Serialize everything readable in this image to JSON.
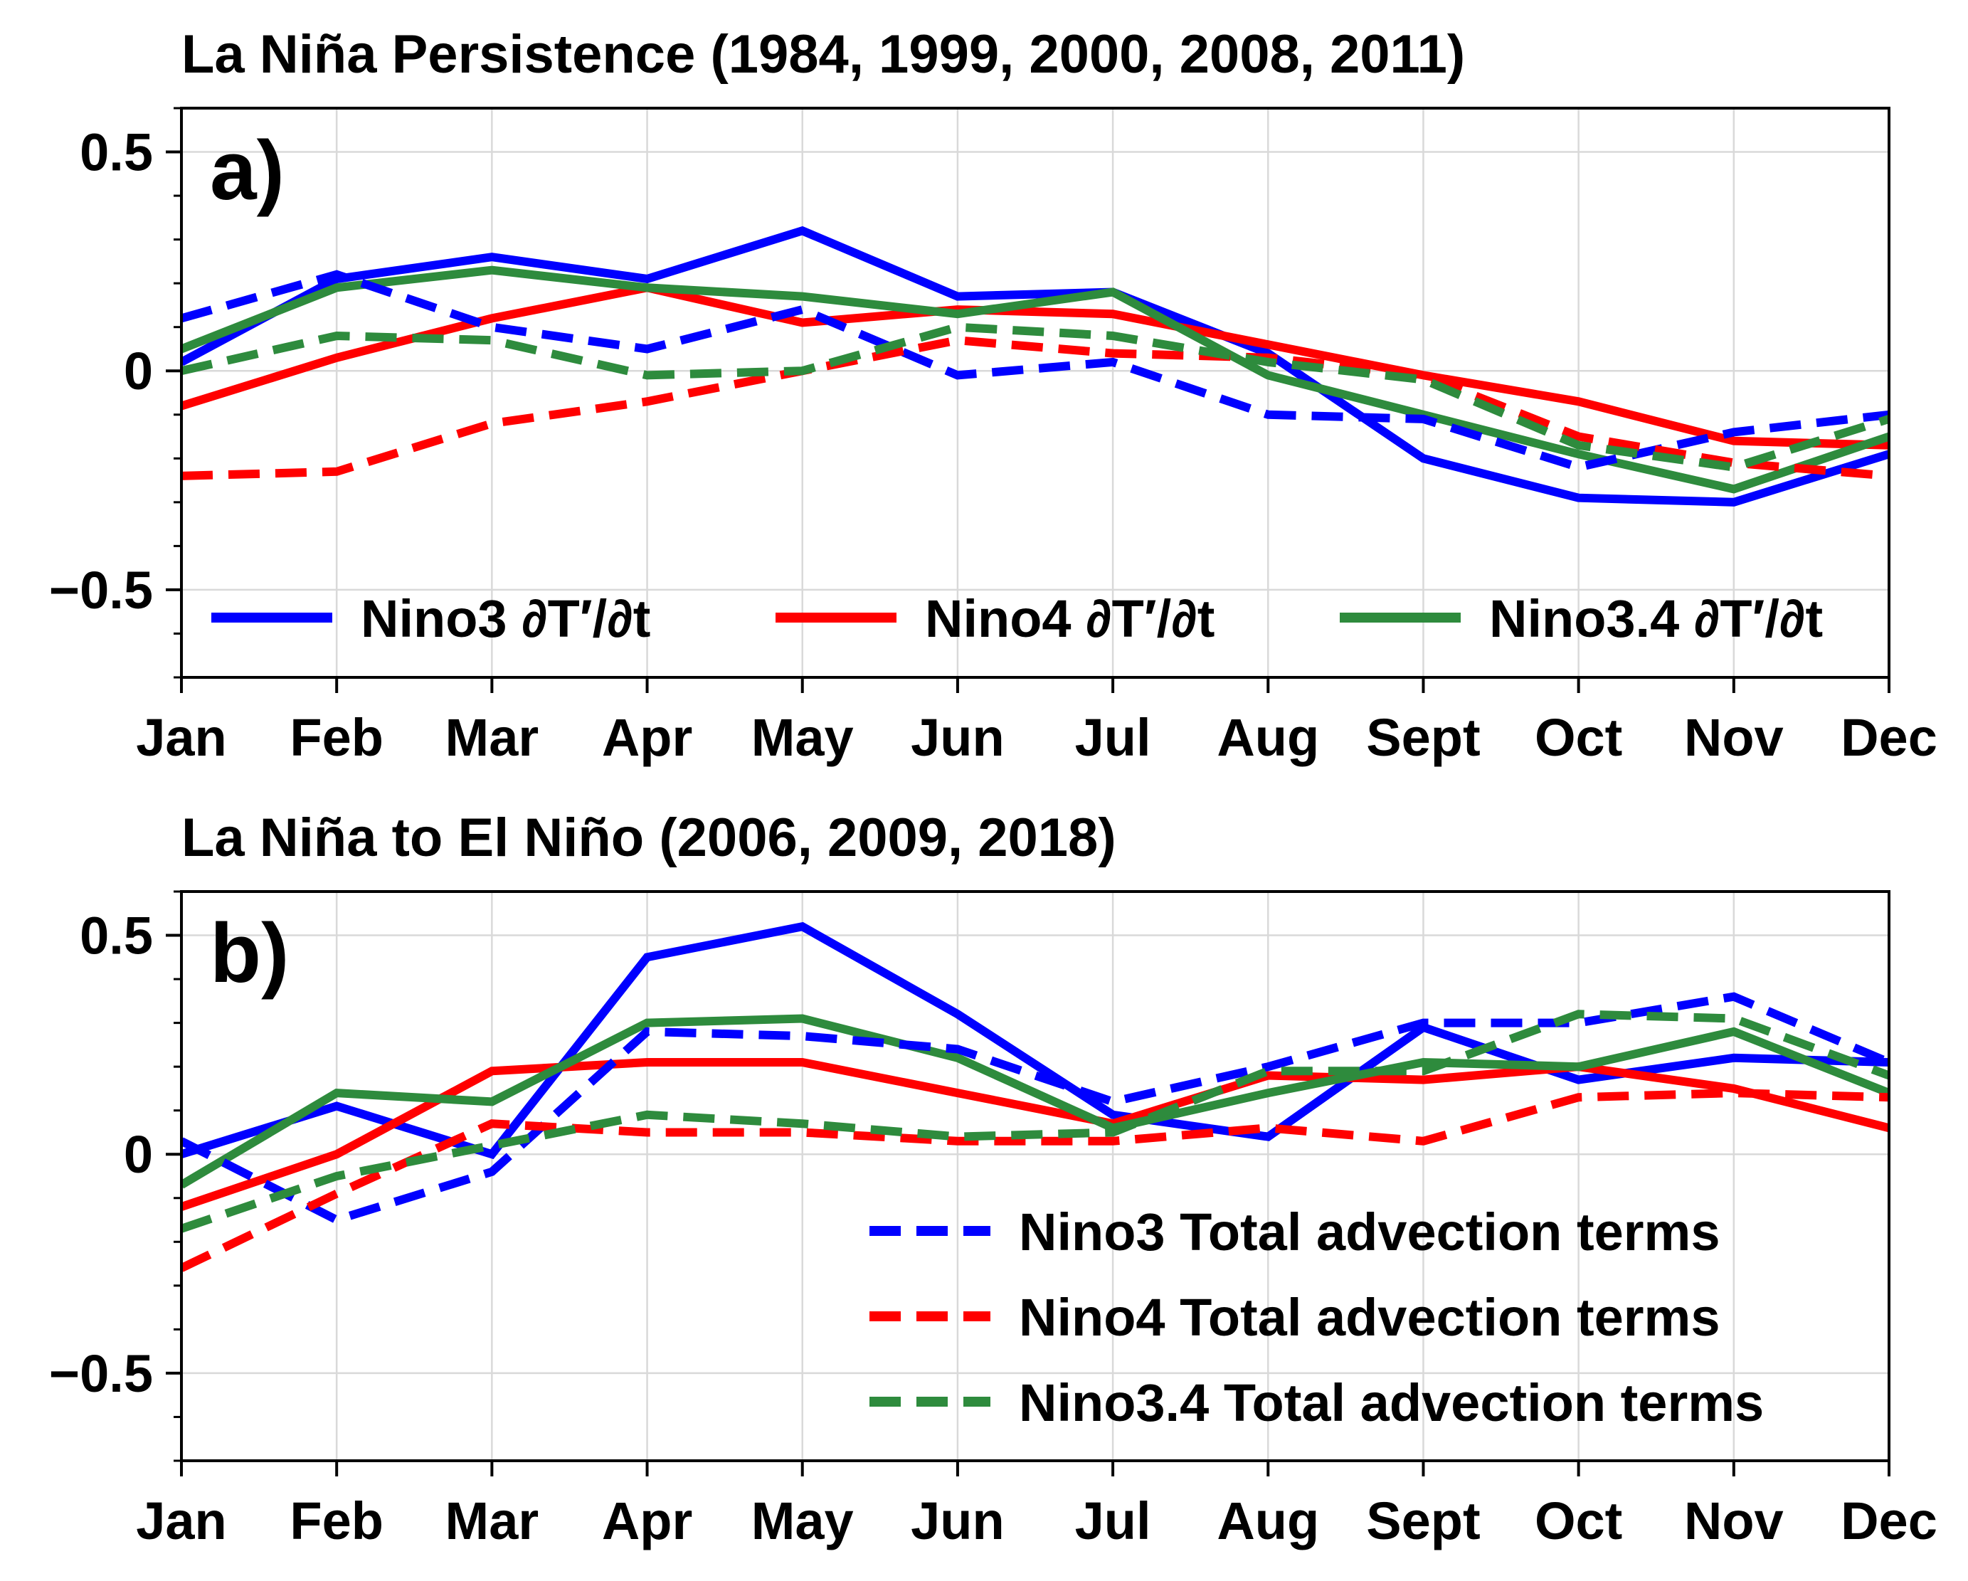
{
  "chart_data": [
    {
      "type": "line",
      "title": "La Niña Persistence (1984, 1999, 2000, 2008, 2011)",
      "panel_label": "a)",
      "categories": [
        "Jan",
        "Feb",
        "Mar",
        "Apr",
        "May",
        "Jun",
        "Jul",
        "Aug",
        "Sept",
        "Oct",
        "Nov",
        "Dec"
      ],
      "ylim": [
        -0.7,
        0.6
      ],
      "yticks": [
        -0.5,
        0,
        0.5
      ],
      "ytick_labels": [
        "−0.5",
        "0",
        "0.5"
      ],
      "grid": true,
      "legend_placement": "bottom",
      "legend_layout": "row",
      "series": [
        {
          "name": "Nino3 ∂T′/∂t",
          "color": "#0000ff",
          "style": "solid",
          "in_legend": true,
          "values": [
            0.02,
            0.21,
            0.26,
            0.21,
            0.32,
            0.17,
            0.18,
            0.04,
            -0.2,
            -0.29,
            -0.3,
            -0.19
          ]
        },
        {
          "name": "Nino4 ∂T′/∂t",
          "color": "#ff0000",
          "style": "solid",
          "in_legend": true,
          "values": [
            -0.08,
            0.03,
            0.12,
            0.19,
            0.11,
            0.14,
            0.13,
            0.06,
            -0.01,
            -0.07,
            -0.16,
            -0.17
          ]
        },
        {
          "name": "Nino3.4 ∂T′/∂t",
          "color": "#2e8b3d",
          "style": "solid",
          "in_legend": true,
          "values": [
            0.05,
            0.19,
            0.23,
            0.19,
            0.17,
            0.13,
            0.18,
            -0.01,
            -0.1,
            -0.19,
            -0.27,
            -0.15
          ]
        },
        {
          "name": "Nino3 Total advection terms",
          "color": "#0000ff",
          "style": "dashed",
          "in_legend": false,
          "values": [
            0.12,
            0.22,
            0.1,
            0.05,
            0.14,
            -0.01,
            0.02,
            -0.1,
            -0.11,
            -0.22,
            -0.14,
            -0.1
          ]
        },
        {
          "name": "Nino4 Total advection terms",
          "color": "#ff0000",
          "style": "dashed",
          "in_legend": false,
          "values": [
            -0.24,
            -0.23,
            -0.12,
            -0.07,
            0.0,
            0.07,
            0.04,
            0.03,
            -0.01,
            -0.15,
            -0.21,
            -0.24
          ]
        },
        {
          "name": "Nino3.4 Total advection terms",
          "color": "#2e8b3d",
          "style": "dashed",
          "in_legend": false,
          "values": [
            0.0,
            0.08,
            0.07,
            -0.01,
            0.0,
            0.1,
            0.08,
            0.02,
            -0.02,
            -0.17,
            -0.22,
            -0.11
          ]
        }
      ]
    },
    {
      "type": "line",
      "title": "La Niña to El Niño (2006, 2009, 2018)",
      "panel_label": "b)",
      "categories": [
        "Jan",
        "Feb",
        "Mar",
        "Apr",
        "May",
        "Jun",
        "Jul",
        "Aug",
        "Sept",
        "Oct",
        "Nov",
        "Dec"
      ],
      "ylim": [
        -0.7,
        0.6
      ],
      "yticks": [
        -0.5,
        0,
        0.5
      ],
      "ytick_labels": [
        "−0.5",
        "0",
        "0.5"
      ],
      "grid": true,
      "legend_placement": "bottom-right",
      "legend_layout": "column",
      "series": [
        {
          "name": "Nino3 ∂T′/∂t",
          "color": "#0000ff",
          "style": "solid",
          "in_legend": false,
          "values": [
            0.0,
            0.11,
            0.0,
            0.45,
            0.52,
            0.32,
            0.09,
            0.04,
            0.29,
            0.17,
            0.22,
            0.21
          ]
        },
        {
          "name": "Nino4 ∂T′/∂t",
          "color": "#ff0000",
          "style": "solid",
          "in_legend": false,
          "values": [
            -0.12,
            0.0,
            0.19,
            0.21,
            0.21,
            0.14,
            0.07,
            0.18,
            0.17,
            0.2,
            0.15,
            0.06
          ]
        },
        {
          "name": "Nino3.4 ∂T′/∂t",
          "color": "#2e8b3d",
          "style": "solid",
          "in_legend": false,
          "values": [
            -0.07,
            0.14,
            0.12,
            0.3,
            0.31,
            0.22,
            0.06,
            0.14,
            0.21,
            0.2,
            0.28,
            0.14
          ]
        },
        {
          "name": "Nino3 Total advection terms",
          "color": "#0000ff",
          "style": "dashed",
          "in_legend": true,
          "values": [
            0.03,
            -0.15,
            -0.04,
            0.28,
            0.27,
            0.24,
            0.12,
            0.2,
            0.3,
            0.3,
            0.36,
            0.21
          ]
        },
        {
          "name": "Nino4 Total advection terms",
          "color": "#ff0000",
          "style": "dashed",
          "in_legend": true,
          "values": [
            -0.26,
            -0.09,
            0.07,
            0.05,
            0.05,
            0.03,
            0.03,
            0.06,
            0.03,
            0.13,
            0.14,
            0.13
          ]
        },
        {
          "name": "Nino3.4 Total advection terms",
          "color": "#2e8b3d",
          "style": "dashed",
          "in_legend": true,
          "values": [
            -0.17,
            -0.05,
            0.02,
            0.09,
            0.07,
            0.04,
            0.05,
            0.19,
            0.19,
            0.32,
            0.31,
            0.18
          ]
        }
      ]
    }
  ]
}
